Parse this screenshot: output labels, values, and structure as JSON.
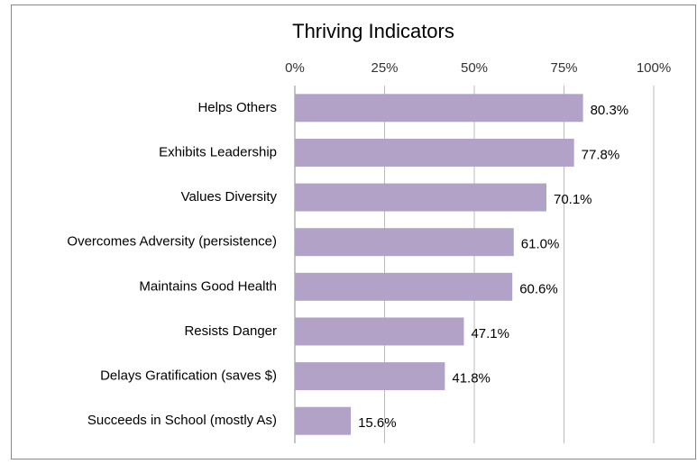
{
  "chart_data": {
    "type": "bar",
    "orientation": "horizontal",
    "title": "Thriving Indicators",
    "categories": [
      "Helps Others",
      "Exhibits Leadership",
      "Values Diversity",
      "Overcomes Adversity (persistence)",
      "Maintains Good Health",
      "Resists Danger",
      "Delays Gratification (saves $)",
      "Succeeds in School (mostly As)"
    ],
    "values": [
      80.3,
      77.8,
      70.1,
      61.0,
      60.6,
      47.1,
      41.8,
      15.6
    ],
    "value_labels": [
      "80.3%",
      "77.8%",
      "70.1%",
      "61.0%",
      "60.6%",
      "47.1%",
      "41.8%",
      "15.6%"
    ],
    "color": "#b2a2c7",
    "xlim": [
      0,
      100
    ],
    "xticks": [
      {
        "value": 0,
        "label": "0%"
      },
      {
        "value": 25,
        "label": "25%"
      },
      {
        "value": 50,
        "label": "50%"
      },
      {
        "value": 75,
        "label": "75%"
      },
      {
        "value": 100,
        "label": "100%"
      }
    ],
    "grid": true
  }
}
